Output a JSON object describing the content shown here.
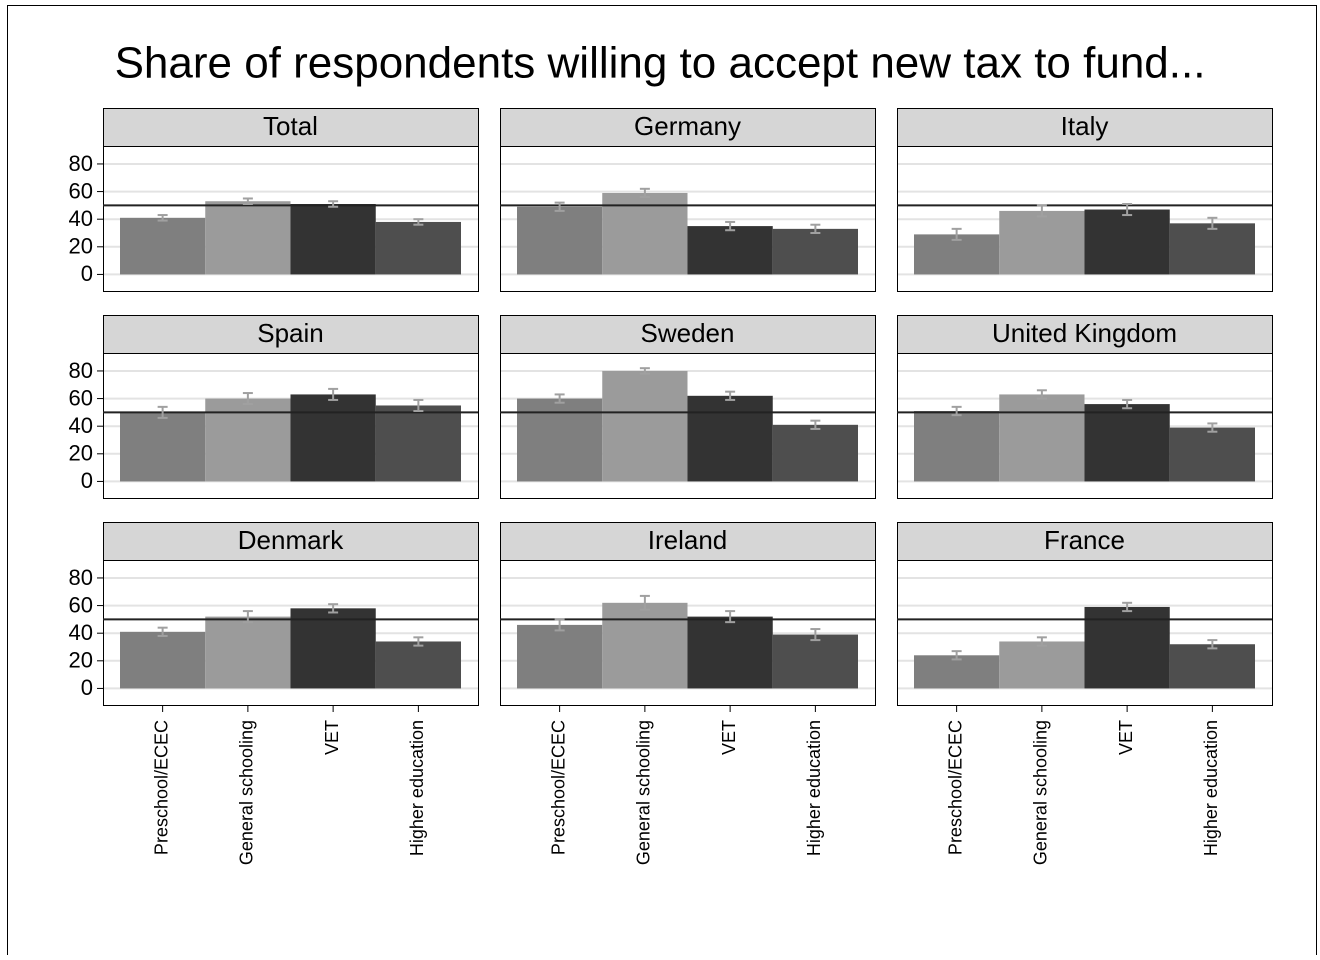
{
  "title": "Share of respondents willing to accept new tax to fund...",
  "categories": [
    "Preschool/ECEC",
    "General schooling",
    "VET",
    "Higher education"
  ],
  "colors": [
    "#7f7f7f",
    "#9b9b9b",
    "#333333",
    "#4e4e4e"
  ],
  "error_color": "#a0a0a0",
  "ylim": [
    -12,
    93
  ],
  "yticks": [
    0,
    20,
    40,
    60,
    80
  ],
  "grid": true,
  "reference_line": 50,
  "chart_data": [
    {
      "type": "bar",
      "title": "Total",
      "values": [
        41,
        53,
        51,
        38
      ],
      "errors": [
        2,
        2,
        2,
        2
      ]
    },
    {
      "type": "bar",
      "title": "Germany",
      "values": [
        49,
        59,
        35,
        33
      ],
      "errors": [
        3,
        3,
        3,
        3
      ]
    },
    {
      "type": "bar",
      "title": "Italy",
      "values": [
        29,
        46,
        47,
        37
      ],
      "errors": [
        4,
        4,
        4,
        4
      ]
    },
    {
      "type": "bar",
      "title": "Spain",
      "values": [
        50,
        60,
        63,
        55
      ],
      "errors": [
        4,
        4,
        4,
        4
      ]
    },
    {
      "type": "bar",
      "title": "Sweden",
      "values": [
        60,
        80,
        62,
        41
      ],
      "errors": [
        3,
        2,
        3,
        3
      ]
    },
    {
      "type": "bar",
      "title": "United Kingdom",
      "values": [
        51,
        63,
        56,
        39
      ],
      "errors": [
        3,
        3,
        3,
        3
      ]
    },
    {
      "type": "bar",
      "title": "Denmark",
      "values": [
        41,
        52,
        58,
        34
      ],
      "errors": [
        3,
        4,
        3,
        3
      ]
    },
    {
      "type": "bar",
      "title": "Ireland",
      "values": [
        46,
        62,
        52,
        39
      ],
      "errors": [
        4,
        5,
        4,
        4
      ]
    },
    {
      "type": "bar",
      "title": "France",
      "values": [
        24,
        34,
        59,
        32
      ],
      "errors": [
        3,
        3,
        3,
        3
      ]
    }
  ]
}
